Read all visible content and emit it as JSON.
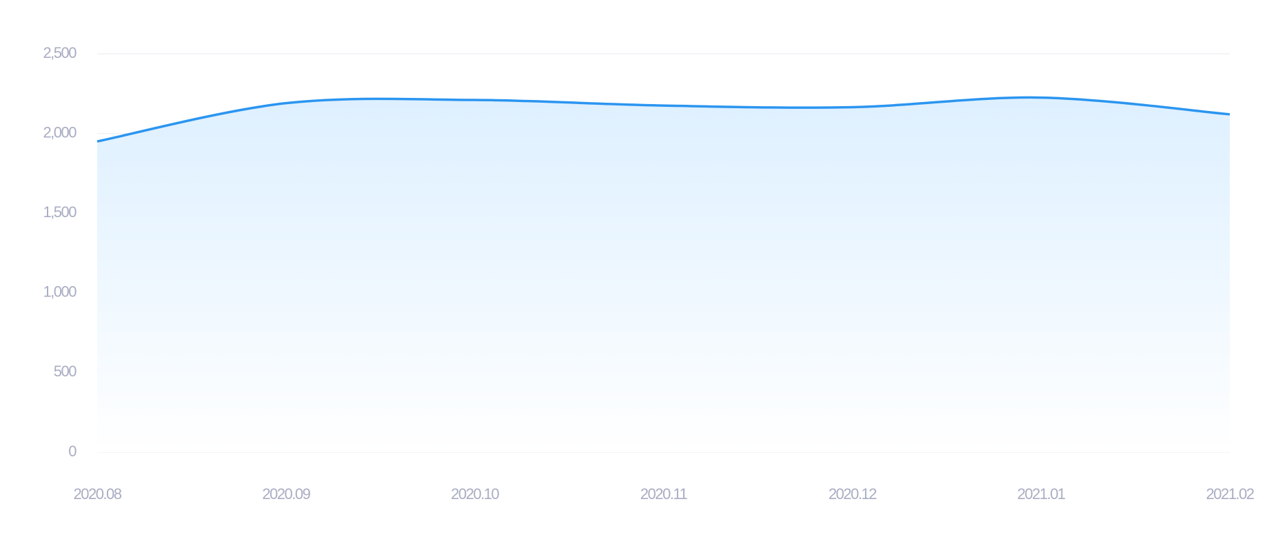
{
  "chart_data": {
    "type": "area",
    "categories": [
      "2020.08",
      "2020.09",
      "2020.10",
      "2020.11",
      "2020.12",
      "2021.01",
      "2021.02"
    ],
    "values": [
      1950,
      2190,
      2210,
      2175,
      2165,
      2225,
      2120
    ],
    "color": "#2b95f0",
    "ylim": [
      0,
      2500
    ],
    "yticks": [
      0,
      500,
      {
        "value": 1000,
        "label": "1,000"
      },
      {
        "value": 1500,
        "label": "1,500"
      },
      {
        "value": 2000,
        "label": "2,000"
      },
      {
        "value": 2500,
        "label": "2,500"
      }
    ],
    "grid": true
  }
}
